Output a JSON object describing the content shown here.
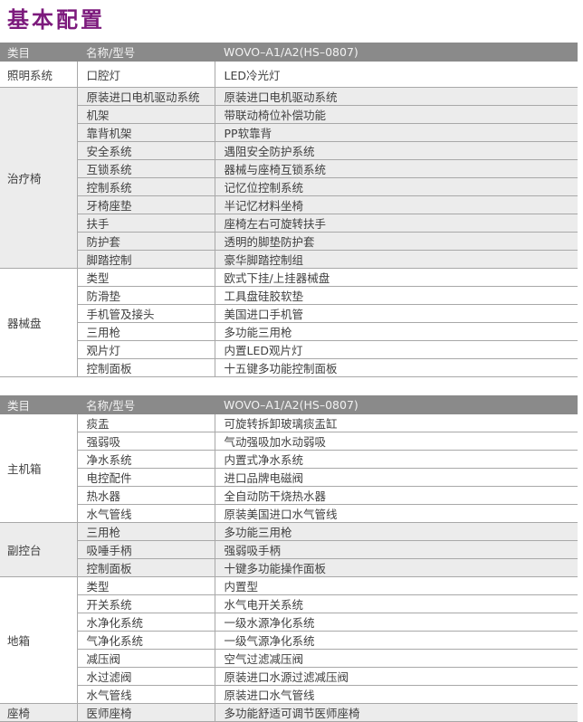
{
  "page": {
    "title": "基本配置"
  },
  "colors": {
    "title_text": "#7c1a7c",
    "header_bg": "#8a8a8a",
    "header_text": "#f2f2f2",
    "group_alt_bg": "#ececec",
    "row_border": "#a8a8a8",
    "body_text": "#404040"
  },
  "tables": [
    {
      "columns": [
        "类目",
        "名称/型号",
        "WOVO–A1/A2(HS–0807)"
      ],
      "groups": [
        {
          "category": "照明系统",
          "rows": [
            {
              "name": "口腔灯",
              "value": "LED冷光灯"
            }
          ]
        },
        {
          "category": "治疗椅",
          "rows": [
            {
              "name": "原装进口电机驱动系统",
              "value": "原装进口电机驱动系统"
            },
            {
              "name": "机架",
              "value": "带联动椅位补偿功能"
            },
            {
              "name": "靠背机架",
              "value": "PP软靠背"
            },
            {
              "name": "安全系统",
              "value": "遇阻安全防护系统"
            },
            {
              "name": "互锁系统",
              "value": "器械与座椅互锁系统"
            },
            {
              "name": "控制系统",
              "value": "记忆位控制系统"
            },
            {
              "name": "牙椅座垫",
              "value": "半记忆材料坐椅"
            },
            {
              "name": "扶手",
              "value": "座椅左右可旋转扶手"
            },
            {
              "name": "防护套",
              "value": "透明的脚垫防护套"
            },
            {
              "name": "脚踏控制",
              "value": "豪华脚踏控制组"
            }
          ]
        },
        {
          "category": "器械盘",
          "rows": [
            {
              "name": "类型",
              "value": "欧式下挂/上挂器械盘"
            },
            {
              "name": "防滑垫",
              "value": "工具盘硅胶软垫"
            },
            {
              "name": "手机管及接头",
              "value": "美国进口手机管"
            },
            {
              "name": "三用枪",
              "value": "多功能三用枪"
            },
            {
              "name": "观片灯",
              "value": "内置LED观片灯"
            },
            {
              "name": "控制面板",
              "value": "十五键多功能控制面板"
            }
          ]
        }
      ]
    },
    {
      "columns": [
        "类目",
        "名称/型号",
        "WOVO–A1/A2(HS–0807)"
      ],
      "groups": [
        {
          "category": "主机箱",
          "rows": [
            {
              "name": "痰盂",
              "value": "可旋转拆卸玻璃痰盂缸"
            },
            {
              "name": "强弱吸",
              "value": "气动强吸加水动弱吸"
            },
            {
              "name": "净水系统",
              "value": "内置式净水系统"
            },
            {
              "name": "电控配件",
              "value": "进口品牌电磁阀"
            },
            {
              "name": "热水器",
              "value": "全自动防干烧热水器"
            },
            {
              "name": "水气管线",
              "value": "原装美国进口水气管线"
            }
          ]
        },
        {
          "category": "副控台",
          "rows": [
            {
              "name": "三用枪",
              "value": "多功能三用枪"
            },
            {
              "name": "吸唾手柄",
              "value": "强弱吸手柄"
            },
            {
              "name": "控制面板",
              "value": "十键多功能操作面板"
            }
          ]
        },
        {
          "category": "地箱",
          "rows": [
            {
              "name": "类型",
              "value": "内置型"
            },
            {
              "name": "开关系统",
              "value": "水气电开关系统"
            },
            {
              "name": "水净化系统",
              "value": "一级水源净化系统"
            },
            {
              "name": "气净化系统",
              "value": "一级气源净化系统"
            },
            {
              "name": "减压阀",
              "value": "空气过滤减压阀"
            },
            {
              "name": "水过滤阀",
              "value": "原装进口水源过滤减压阀"
            },
            {
              "name": "水气管线",
              "value": "原装进口水气管线"
            }
          ]
        },
        {
          "category": "座椅",
          "rows": [
            {
              "name": "医师座椅",
              "value": "多功能舒适可调节医师座椅"
            }
          ]
        }
      ]
    }
  ]
}
